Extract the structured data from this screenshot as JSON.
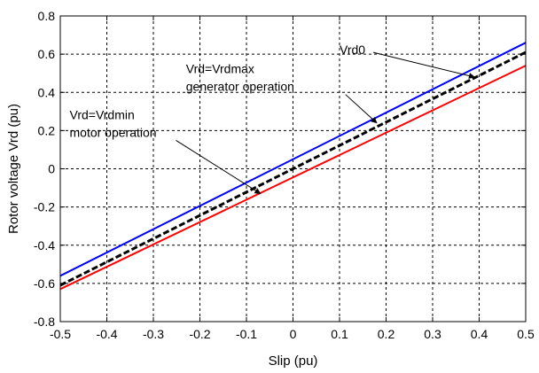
{
  "chart_data": {
    "type": "line",
    "xlabel": "Slip (pu)",
    "ylabel": "Rotor voltage Vrd (pu)",
    "xlim": [
      -0.5,
      0.5
    ],
    "ylim": [
      -0.8,
      0.8
    ],
    "xticks": [
      -0.5,
      -0.4,
      -0.3,
      -0.2,
      -0.1,
      0,
      0.1,
      0.2,
      0.3,
      0.4,
      0.5
    ],
    "yticks": [
      -0.8,
      -0.6,
      -0.4,
      -0.2,
      0,
      0.2,
      0.4,
      0.6,
      0.8
    ],
    "xtick_labels": [
      "-0.5",
      "-0.4",
      "-0.3",
      "-0.2",
      "-0.1",
      "0",
      "0.1",
      "0.2",
      "0.3",
      "0.4",
      "0.5"
    ],
    "ytick_labels": [
      "-0.8",
      "-0.6",
      "-0.4",
      "-0.2",
      "0",
      "0.2",
      "0.4",
      "0.6",
      "0.8"
    ],
    "grid": true,
    "series": [
      {
        "x": [
          -0.5,
          0.5
        ],
        "y": [
          -0.56,
          0.66
        ],
        "color": "#0000ff",
        "style": "solid"
      },
      {
        "x": [
          -0.5,
          0.5
        ],
        "y": [
          -0.61,
          0.61
        ],
        "color": "#000000",
        "style": "dashed"
      },
      {
        "x": [
          -0.5,
          0.5
        ],
        "y": [
          -0.63,
          0.54
        ],
        "color": "#ff0000",
        "style": "solid"
      }
    ],
    "annotations": [
      {
        "lines": [
          "Vrd0"
        ],
        "text_x": 0.1,
        "text_y": 0.6,
        "arrow_to": [
          0.39,
          0.48
        ]
      },
      {
        "lines": [
          "Vrd=Vrdmax",
          "generator operation"
        ],
        "text_x": -0.23,
        "text_y": 0.5,
        "arrow_to": [
          0.18,
          0.24
        ]
      },
      {
        "lines": [
          "Vrd=Vrdmin",
          "motor operation"
        ],
        "text_x": -0.48,
        "text_y": 0.26,
        "arrow_to": [
          -0.07,
          -0.13
        ]
      }
    ]
  }
}
